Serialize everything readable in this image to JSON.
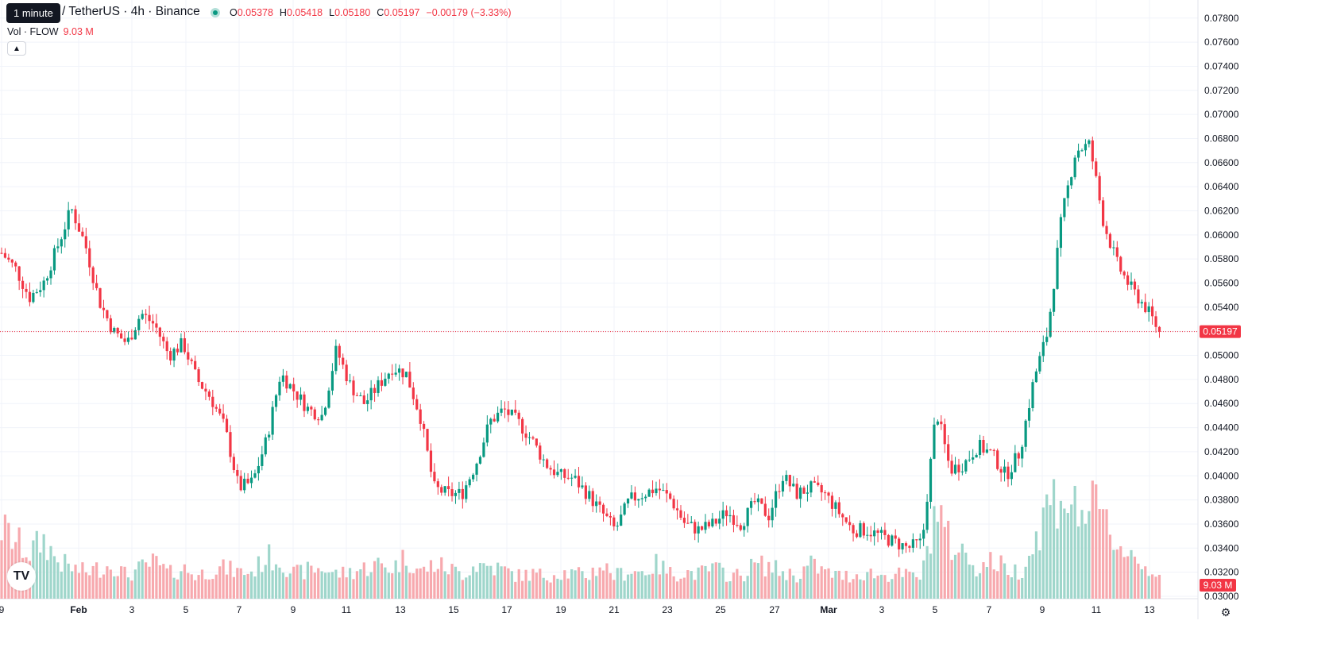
{
  "header": {
    "tooltip": "1 minute",
    "symbol_title": "/ TetherUS · 4h · Binance",
    "ohlc": [
      {
        "key": "O",
        "value": "0.05378"
      },
      {
        "key": "H",
        "value": "0.05418"
      },
      {
        "key": "L",
        "value": "0.05180"
      },
      {
        "key": "C",
        "value": "0.05197"
      }
    ],
    "change": "−0.00179 (−3.33%)",
    "volume_label": "Vol · FLOW",
    "volume_value": "9.03 M",
    "collapse_icon": "chevron-up-icon",
    "logo_text": "TV"
  },
  "colors": {
    "up": "#089981",
    "down": "#f23645",
    "vol_up": "#9fd6cb",
    "vol_down": "#f7a9ae",
    "grid": "#f0f3fa",
    "last_price_line": "#f23645"
  },
  "chart_data": {
    "type": "candlestick",
    "timeframe": "4h",
    "y_axis_ticks": [
      "0.03000",
      "0.03200",
      "0.03400",
      "0.03600",
      "0.03800",
      "0.04000",
      "0.04200",
      "0.04400",
      "0.04600",
      "0.04800",
      "0.05000",
      "0.05200",
      "0.05400",
      "0.05600",
      "0.05800",
      "0.06000",
      "0.06200",
      "0.06400",
      "0.06600",
      "0.06800",
      "0.07000",
      "0.07200",
      "0.07400",
      "0.07600",
      "0.07800"
    ],
    "ylim": [
      0.0298,
      0.0795
    ],
    "x_axis_ticks": [
      "9",
      "Feb",
      "3",
      "5",
      "7",
      "9",
      "11",
      "13",
      "15",
      "17",
      "19",
      "21",
      "23",
      "25",
      "27",
      "Mar",
      "3",
      "5",
      "7",
      "9",
      "11",
      "13"
    ],
    "last_price": "0.05197",
    "last_volume": "9.03 M",
    "path_price": [
      0.0585,
      0.0572,
      0.0548,
      0.056,
      0.059,
      0.0622,
      0.0592,
      0.0545,
      0.052,
      0.051,
      0.0535,
      0.0525,
      0.05,
      0.051,
      0.048,
      0.0465,
      0.044,
      0.039,
      0.0395,
      0.043,
      0.0485,
      0.047,
      0.0455,
      0.045,
      0.0505,
      0.0475,
      0.046,
      0.0475,
      0.049,
      0.0485,
      0.045,
      0.039,
      0.0385,
      0.0385,
      0.041,
      0.0445,
      0.0455,
      0.0445,
      0.043,
      0.041,
      0.04,
      0.0398,
      0.0385,
      0.037,
      0.0355,
      0.038,
      0.0385,
      0.039,
      0.038,
      0.036,
      0.0355,
      0.036,
      0.037,
      0.036,
      0.0378,
      0.0367,
      0.04,
      0.0385,
      0.039,
      0.0385,
      0.037,
      0.0355,
      0.0355,
      0.035,
      0.0345,
      0.034,
      0.0345,
      0.0455,
      0.0405,
      0.041,
      0.0425,
      0.0418,
      0.04,
      0.042,
      0.048,
      0.052,
      0.0615,
      0.067,
      0.0675,
      0.061,
      0.0575,
      0.0555,
      0.054,
      0.052
    ],
    "path_volume": [
      3.7,
      3.0,
      2.4,
      3.1,
      2.0,
      1.6,
      1.4,
      1.6,
      1.8,
      1.2,
      1.6,
      1.9,
      1.3,
      1.6,
      1.2,
      1.5,
      1.6,
      1.4,
      1.4,
      2.2,
      2.0,
      1.3,
      1.5,
      1.6,
      1.3,
      1.4,
      1.6,
      1.8,
      1.6,
      2.2,
      1.4,
      1.8,
      1.6,
      1.3,
      1.8,
      1.7,
      1.5,
      1.2,
      1.3,
      1.2,
      1.4,
      1.3,
      1.2,
      1.8,
      1.2,
      1.5,
      1.4,
      1.8,
      1.3,
      1.4,
      1.3,
      1.6,
      1.3,
      1.2,
      1.8,
      1.7,
      1.4,
      1.2,
      1.8,
      1.4,
      1.2,
      1.2,
      1.4,
      1.2,
      1.3,
      1.2,
      1.2,
      5.0,
      2.8,
      2.4,
      1.6,
      2.0,
      1.6,
      1.4,
      2.8,
      5.0,
      5.6,
      4.6,
      4.8,
      4.2,
      2.8,
      2.4,
      1.6,
      1.4
    ]
  }
}
